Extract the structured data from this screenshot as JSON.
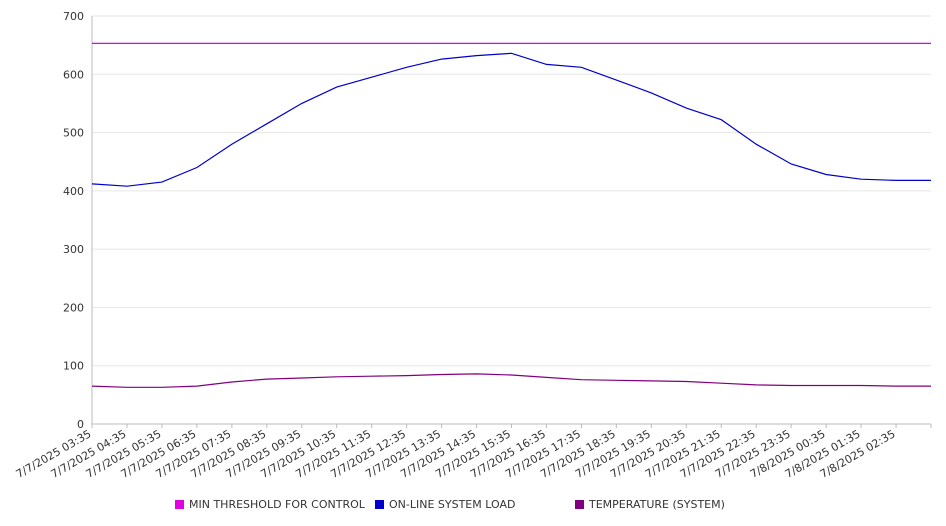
{
  "chart_data": {
    "type": "line",
    "title": "",
    "xlabel": "",
    "ylabel": "",
    "ylim": [
      0,
      700
    ],
    "yticks": [
      0,
      100,
      200,
      300,
      400,
      500,
      600,
      700
    ],
    "grid": true,
    "legend_position": "bottom",
    "categories": [
      "7/7/2025 03:35",
      "7/7/2025 04:35",
      "7/7/2025 05:35",
      "7/7/2025 06:35",
      "7/7/2025 07:35",
      "7/7/2025 08:35",
      "7/7/2025 09:35",
      "7/7/2025 10:35",
      "7/7/2025 11:35",
      "7/7/2025 12:35",
      "7/7/2025 13:35",
      "7/7/2025 14:35",
      "7/7/2025 15:35",
      "7/7/2025 16:35",
      "7/7/2025 17:35",
      "7/7/2025 18:35",
      "7/7/2025 19:35",
      "7/7/2025 20:35",
      "7/7/2025 21:35",
      "7/7/2025 22:35",
      "7/7/2025 23:35",
      "7/8/2025 00:35",
      "7/8/2025 01:35",
      "7/8/2025 02:35"
    ],
    "series": [
      {
        "name": "MIN THRESHOLD FOR CONTROL",
        "color": "#e000e0",
        "values": [
          653,
          653,
          653,
          653,
          653,
          653,
          653,
          653,
          653,
          653,
          653,
          653,
          653,
          653,
          653,
          653,
          653,
          653,
          653,
          653,
          653,
          653,
          653,
          653
        ]
      },
      {
        "name": "ON-LINE SYSTEM LOAD",
        "color": "#0000cc",
        "values": [
          412,
          408,
          415,
          440,
          480,
          515,
          550,
          578,
          595,
          612,
          626,
          632,
          636,
          617,
          612,
          590,
          568,
          542,
          522,
          480,
          446,
          428,
          420,
          418
        ]
      },
      {
        "name": "TEMPERATURE (SYSTEM)",
        "color": "#800080",
        "values": [
          65,
          63,
          63,
          65,
          72,
          77,
          79,
          81,
          82,
          83,
          85,
          86,
          84,
          80,
          76,
          75,
          74,
          73,
          70,
          67,
          66,
          66,
          66,
          65
        ]
      }
    ]
  }
}
